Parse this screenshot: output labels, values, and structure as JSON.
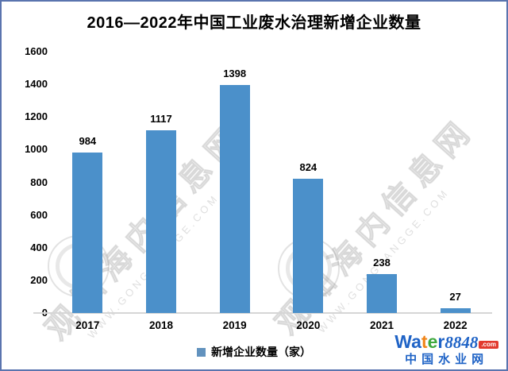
{
  "title": "2016—2022年中国工业废水治理新增企业数量",
  "chart_data": {
    "type": "bar",
    "title": "2016—2022年中国工业废水治理新增企业数量",
    "categories": [
      "2017",
      "2018",
      "2019",
      "2020",
      "2021",
      "2022"
    ],
    "values": [
      984,
      1117,
      1398,
      824,
      238,
      27
    ],
    "series_name": "新增企业数量（家）",
    "xlabel": "",
    "ylabel": "",
    "ylim": [
      0,
      1600
    ],
    "yticks": [
      0,
      200,
      400,
      600,
      800,
      1000,
      1200,
      1400,
      1600
    ],
    "grid": false,
    "legend_position": "bottom",
    "bar_color": "#4b90ca",
    "axis_line_color": "#d6d6d6"
  },
  "legend": {
    "label": "新增企业数量（家）",
    "marker_color": "#6292be"
  },
  "watermark": {
    "text": "观知海内信息网",
    "subtext": "WWW.GONGFANGGE.COM"
  },
  "logo": {
    "brand_chars": [
      {
        "ch": "W",
        "color": "#1f63c6"
      },
      {
        "ch": "a",
        "color": "#1f63c6"
      },
      {
        "ch": "t",
        "color": "#f08519"
      },
      {
        "ch": "e",
        "color": "#3da83d"
      },
      {
        "ch": "r",
        "color": "#1f63c6"
      }
    ],
    "brand_number": "8848",
    "brand_number_color": "#1f63c6",
    "brand_tld": ".com",
    "brand_tld_bg": "#e23a2e",
    "subtitle": "中国水业网",
    "subtitle_color": "#1f63c6"
  }
}
